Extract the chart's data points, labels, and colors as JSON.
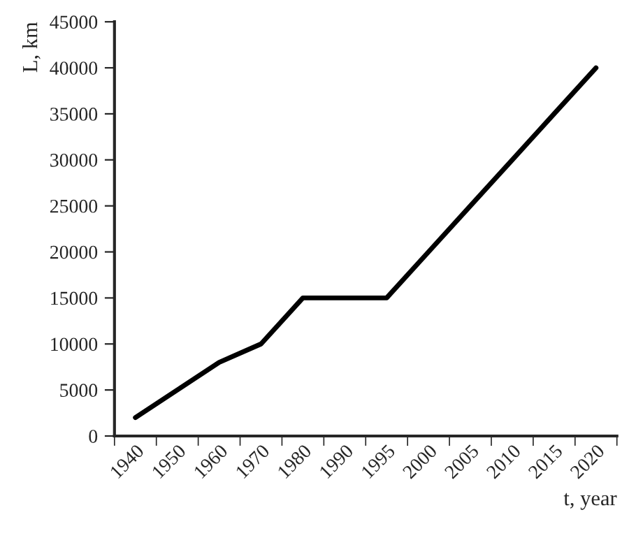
{
  "chart_data": {
    "type": "line",
    "xlabel": "t, year",
    "ylabel": "L, km",
    "categories": [
      "1940",
      "1950",
      "1960",
      "1970",
      "1980",
      "1990",
      "1995",
      "2000",
      "2005",
      "2010",
      "2015",
      "2020"
    ],
    "series": [
      {
        "color": "#000000",
        "values": [
          2000,
          5000,
          8000,
          10000,
          15000,
          15000,
          15000,
          20000,
          25000,
          30000,
          35000,
          40000
        ]
      }
    ],
    "ylim": [
      0,
      45000
    ],
    "yticks": [
      0,
      5000,
      10000,
      15000,
      20000,
      25000,
      30000,
      35000,
      40000,
      45000
    ],
    "grid": false,
    "legend": false,
    "marker": "none",
    "line_style": "solid"
  }
}
